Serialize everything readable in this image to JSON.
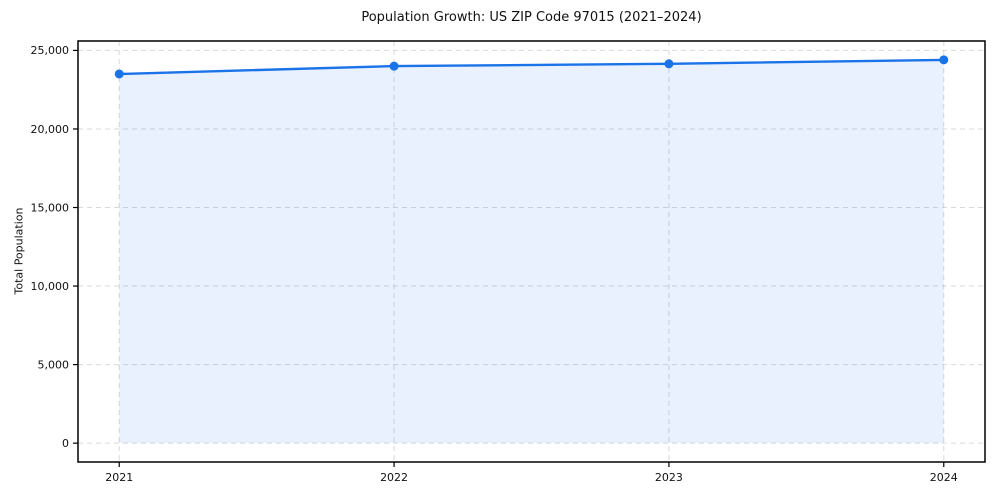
{
  "chart_data": {
    "type": "line",
    "title": "Population Growth: US ZIP Code 97015 (2021–2024)",
    "xlabel": "",
    "ylabel": "Total Population",
    "x": [
      2021,
      2022,
      2023,
      2024
    ],
    "xtick_labels": [
      "2021",
      "2022",
      "2023",
      "2024"
    ],
    "series": [
      {
        "name": "Total Population",
        "values": [
          23500,
          24000,
          24150,
          24400
        ]
      }
    ],
    "area_baseline": 0,
    "yticks": [
      0,
      5000,
      10000,
      15000,
      20000,
      25000
    ],
    "ytick_labels": [
      "0",
      "5,000",
      "10,000",
      "15,000",
      "20,000",
      "25,000"
    ],
    "xlim": [
      2020.85,
      2024.15
    ],
    "ylim": [
      -1200,
      25600
    ],
    "grid": true,
    "grid_style": "dashed",
    "legend": "none",
    "colors": {
      "line": "#1a73e8",
      "marker": "#1a73e8",
      "fill": "#1a73e8",
      "fill_opacity": 0.1,
      "grid": "#d9d9d9",
      "spine": "#000000",
      "text": "#111111",
      "background": "#ffffff"
    }
  }
}
